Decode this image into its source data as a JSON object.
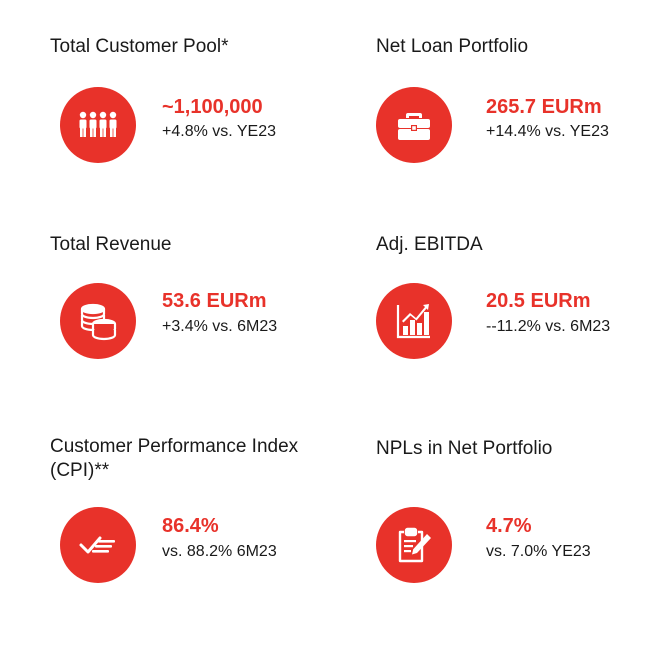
{
  "colors": {
    "accent": "#e8322a",
    "text": "#1a1a1a"
  },
  "kpis": [
    {
      "title": "Total Customer Pool*",
      "value": "~1,100,000",
      "sub": "+4.8% vs. YE23",
      "icon": "people-icon"
    },
    {
      "title": "Net Loan Portfolio",
      "value": "265.7 EURm",
      "sub": "+14.4% vs. YE23",
      "icon": "briefcase-icon"
    },
    {
      "title": "Total Revenue",
      "value": "53.6 EURm",
      "sub": "+3.4% vs. 6M23",
      "icon": "coins-icon"
    },
    {
      "title": "Adj. EBITDA",
      "value": "20.5 EURm",
      "sub": "--11.2% vs. 6M23",
      "icon": "bar-chart-icon"
    },
    {
      "title": "Customer Performance Index\n(CPI)**",
      "value": "86.4%",
      "sub": "vs. 88.2% 6M23",
      "icon": "checkmark-speed-icon"
    },
    {
      "title": "NPLs in Net Portfolio",
      "value": "4.7%",
      "sub": "vs. 7.0% YE23",
      "icon": "clipboard-pencil-icon"
    }
  ]
}
